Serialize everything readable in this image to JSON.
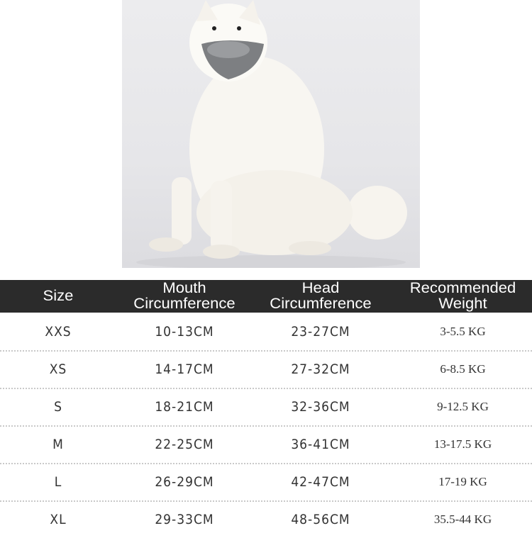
{
  "photo": {
    "muzzle_color": "#7d7f82"
  },
  "table": {
    "header_bg": "#2b2b2b",
    "headers": [
      {
        "line1": "Size",
        "line2": ""
      },
      {
        "line1": "Mouth",
        "line2": "Circumference"
      },
      {
        "line1": "Head",
        "line2": "Circumference"
      },
      {
        "line1": "Recommended",
        "line2": "Weight"
      }
    ],
    "rows": [
      {
        "size": "XXS",
        "mouth": "10-13CM",
        "head": "23-27CM",
        "weight": "3-5.5 KG"
      },
      {
        "size": "XS",
        "mouth": "14-17CM",
        "head": "27-32CM",
        "weight": "6-8.5 KG"
      },
      {
        "size": "S",
        "mouth": "18-21CM",
        "head": "32-36CM",
        "weight": "9-12.5 KG"
      },
      {
        "size": "M",
        "mouth": "22-25CM",
        "head": "36-41CM",
        "weight": "13-17.5 KG"
      },
      {
        "size": "L",
        "mouth": "26-29CM",
        "head": "42-47CM",
        "weight": "17-19 KG"
      },
      {
        "size": "XL",
        "mouth": "29-33CM",
        "head": "48-56CM",
        "weight": "35.5-44 KG"
      }
    ]
  }
}
